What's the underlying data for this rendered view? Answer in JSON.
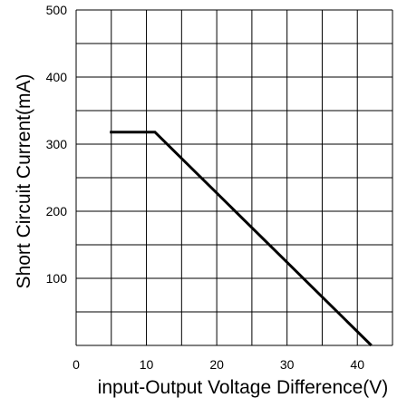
{
  "chart_data": {
    "type": "line",
    "title": "",
    "xlabel": "input-Output Voltage Difference(V)",
    "ylabel": "Short Circuit Current(mA)",
    "xlim": [
      0,
      45
    ],
    "ylim": [
      0,
      500
    ],
    "x_gridlines": [
      0,
      5,
      10,
      15,
      20,
      25,
      30,
      35,
      40,
      45
    ],
    "y_gridlines": [
      0,
      50,
      100,
      150,
      200,
      250,
      300,
      350,
      400,
      450,
      500
    ],
    "x_tick_labels": [
      {
        "value": 0,
        "label": "0"
      },
      {
        "value": 10,
        "label": "10"
      },
      {
        "value": 20,
        "label": "20"
      },
      {
        "value": 30,
        "label": "30"
      },
      {
        "value": 40,
        "label": "40"
      }
    ],
    "y_tick_labels": [
      {
        "value": 100,
        "label": "100"
      },
      {
        "value": 200,
        "label": "200"
      },
      {
        "value": 300,
        "label": "300"
      },
      {
        "value": 400,
        "label": "400"
      },
      {
        "value": 500,
        "label": "500"
      }
    ],
    "grid": true,
    "series": [
      {
        "x": [
          4.8,
          11.2,
          42.0
        ],
        "y": [
          318,
          318,
          0
        ],
        "color": "#000000"
      }
    ]
  }
}
